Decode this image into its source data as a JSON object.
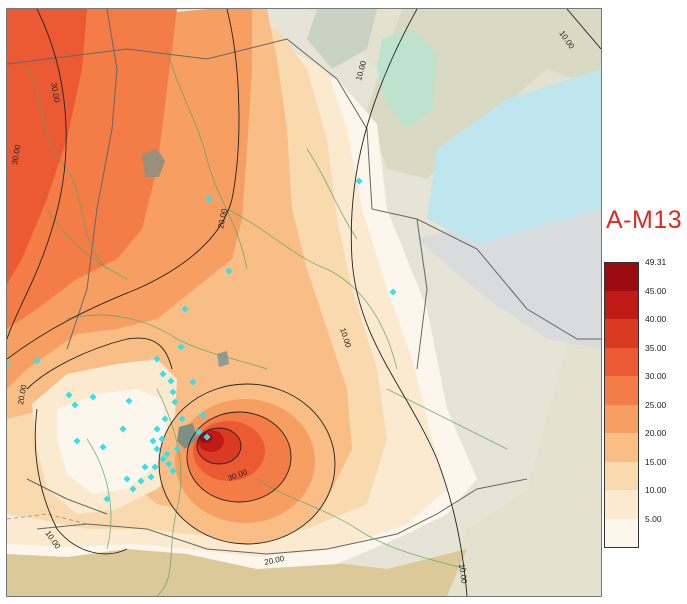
{
  "map": {
    "title": "A-M13",
    "contour_labels": {
      "c10_a": "10.00",
      "c10_b": "10.00",
      "c10_c": "10.00",
      "c10_d": "10.00",
      "c10_e": "10.00",
      "c20_a": "20.00",
      "c20_b": "20.00",
      "c20_c": "20.00",
      "c30_a": "30.00",
      "c30_b": "30.00",
      "c30_c": "30.00"
    },
    "legend": {
      "max_label": "49.31",
      "labels": [
        "45.00",
        "40.00",
        "35.00",
        "30.00",
        "25.00",
        "20.00",
        "15.00",
        "10.00",
        "5.00"
      ],
      "colors": [
        "#9b0b10",
        "#c01a16",
        "#db3a22",
        "#ec5a34",
        "#f47d47",
        "#f79f62",
        "#f8be86",
        "#f9d9ae",
        "#fbeacf",
        "#fdf6ec"
      ]
    },
    "colors": {
      "lake": "#bfe5ee",
      "wetland": "#b7e3cf",
      "marker": "#36e0ea",
      "title": "#e0291f"
    }
  }
}
